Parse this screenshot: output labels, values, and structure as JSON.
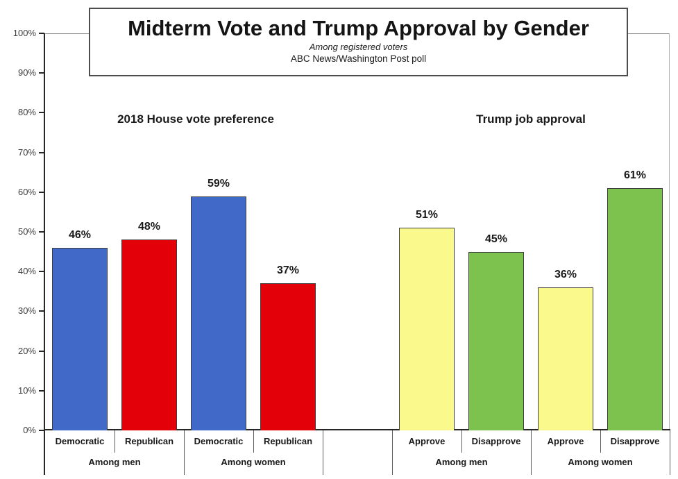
{
  "title_box": {
    "title": "Midterm Vote and Trump Approval by Gender",
    "subtitle": "Among registered voters",
    "source": "ABC News/Washington Post poll"
  },
  "chart_data": {
    "type": "bar",
    "title": "Midterm Vote and Trump Approval by Gender",
    "subtitle": "Among registered voters",
    "source": "ABC News/Washington Post poll",
    "xlabel": "",
    "ylabel": "",
    "ylim": [
      0,
      100
    ],
    "yticks": [
      0,
      10,
      20,
      30,
      40,
      50,
      60,
      70,
      80,
      90,
      100
    ],
    "ytick_suffix": "%",
    "grid": false,
    "legend": "none",
    "value_label_suffix": "%",
    "colors": {
      "democratic": "#4169C8",
      "republican": "#E40009",
      "approve": "#F9FA8B",
      "disapprove": "#7DC24F",
      "bar_border": "#3d3d3d",
      "axis": "#262626"
    },
    "sections": [
      {
        "header": "2018 House vote preference",
        "groups": [
          {
            "label": "Among men",
            "bars": [
              {
                "category": "Democratic",
                "value": 46,
                "color_key": "democratic"
              },
              {
                "category": "Republican",
                "value": 48,
                "color_key": "republican"
              }
            ]
          },
          {
            "label": "Among women",
            "bars": [
              {
                "category": "Democratic",
                "value": 59,
                "color_key": "democratic"
              },
              {
                "category": "Republican",
                "value": 37,
                "color_key": "republican"
              }
            ]
          }
        ]
      },
      {
        "header": "Trump job approval",
        "groups": [
          {
            "label": "Among men",
            "bars": [
              {
                "category": "Approve",
                "value": 51,
                "color_key": "approve"
              },
              {
                "category": "Disapprove",
                "value": 45,
                "color_key": "disapprove"
              }
            ]
          },
          {
            "label": "Among women",
            "bars": [
              {
                "category": "Approve",
                "value": 36,
                "color_key": "approve"
              },
              {
                "category": "Disapprove",
                "value": 61,
                "color_key": "disapprove"
              }
            ]
          }
        ]
      }
    ]
  }
}
